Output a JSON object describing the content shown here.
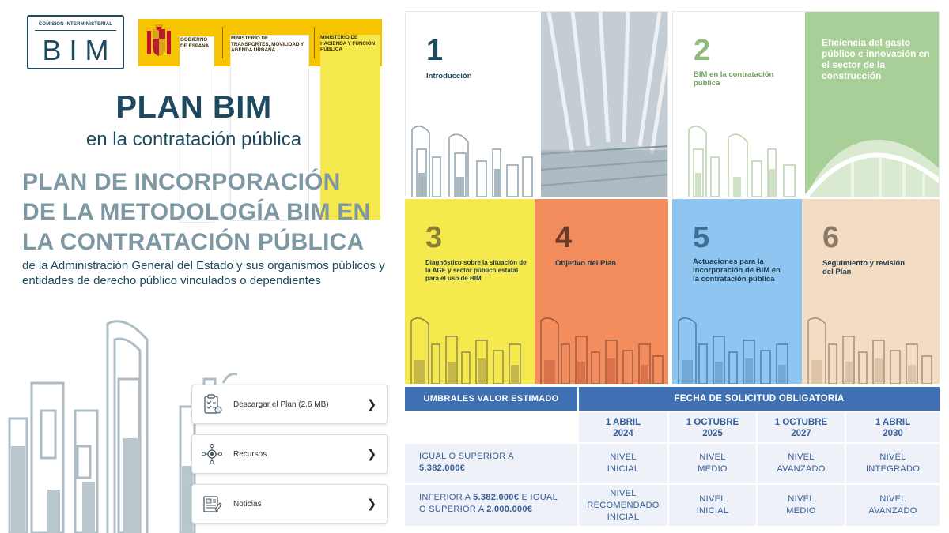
{
  "logo": {
    "bim_small": "COMISIÓN INTERMINISTERIAL",
    "bim_big": "BIM",
    "gov_label": "GOBIERNO DE ESPAÑA",
    "ministry_1": "MINISTERIO DE TRANSPORTES, MOVILIDAD Y AGENDA URBANA",
    "ministry_2": "MINISTERIO DE HACIENDA Y FUNCIÓN PÚBLICA"
  },
  "header": {
    "title": "PLAN BIM",
    "subtitle": "en la contratación pública"
  },
  "main": {
    "heading_lines": [
      "PLAN DE INCORPORACIÓN",
      "DE LA METODOLOGÍA BIM EN",
      "LA CONTRATACIÓN PÚBLICA"
    ],
    "description": "de la Administración General del Estado y sus organismos públicos y entidades de derecho público vinculados o dependientes"
  },
  "links": [
    {
      "label": "Descargar el Plan (2,6 MB)",
      "icon": "clipboard-checklist-icon"
    },
    {
      "label": "Recursos",
      "icon": "network-gear-icon"
    },
    {
      "label": "Noticias",
      "icon": "newspaper-icon"
    }
  ],
  "tiles": [
    {
      "number": "1",
      "title": "Introducción",
      "color": "#ffffff",
      "text_color": "#1e4a5f"
    },
    {
      "number": "2",
      "title": "BIM en la contratación pública",
      "color": "#ffffff",
      "text_color": "#6fa35f",
      "overlay": "Eficiencia del gasto público e innovación en el sector de la construcción"
    },
    {
      "number": "3",
      "title": "Diagnóstico sobre la situación de la AGE y sector público estatal para el uso de BIM",
      "color": "#f6e94e",
      "text_color": "#1e3a4a"
    },
    {
      "number": "4",
      "title": "Objetivo del Plan",
      "color": "#f48d5e",
      "text_color": "#1e3a4a"
    },
    {
      "number": "5",
      "title": "Actuaciones para la incorporación de BIM en la contratación pública",
      "color": "#8fc6f1",
      "text_color": "#1e3a4a"
    },
    {
      "number": "6",
      "title": "Seguimiento y revisión del Plan",
      "color": "#f2dcc4",
      "text_color": "#1e3a4a"
    }
  ],
  "table": {
    "header_left": "UMBRALES VALOR ESTIMADO",
    "header_right": "FECHA DE SOLICITUD OBLIGATORIA",
    "dates": [
      {
        "line1": "1 ABRIL",
        "line2": "2024"
      },
      {
        "line1": "1 OCTUBRE",
        "line2": "2025"
      },
      {
        "line1": "1 OCTUBRE",
        "line2": "2027"
      },
      {
        "line1": "1 ABRIL",
        "line2": "2030"
      }
    ],
    "rows": [
      {
        "label_a": "IGUAL O SUPERIOR A",
        "label_b": "5.382.000€",
        "values": [
          "NIVEL INICIAL",
          "NIVEL MEDIO",
          "NIVEL AVANZADO",
          "NIVEL INTEGRADO"
        ]
      },
      {
        "label_a": "INFERIOR A ",
        "label_a_bold": "5.382.000€",
        "label_a_rest": " E IGUAL",
        "label_b_pre": "O SUPERIOR A ",
        "label_b": "2.000.000€",
        "values": [
          "NIVEL RECOMENDADO INICIAL",
          "NIVEL INICIAL",
          "NIVEL MEDIO",
          "NIVEL AVANZADO"
        ]
      }
    ]
  },
  "colors": {
    "primary": "#1e4a5f",
    "table_header": "#3f70b3",
    "table_cell": "#eef1f7",
    "table_text": "#355e99",
    "gov_yellow": "#f6c400"
  }
}
